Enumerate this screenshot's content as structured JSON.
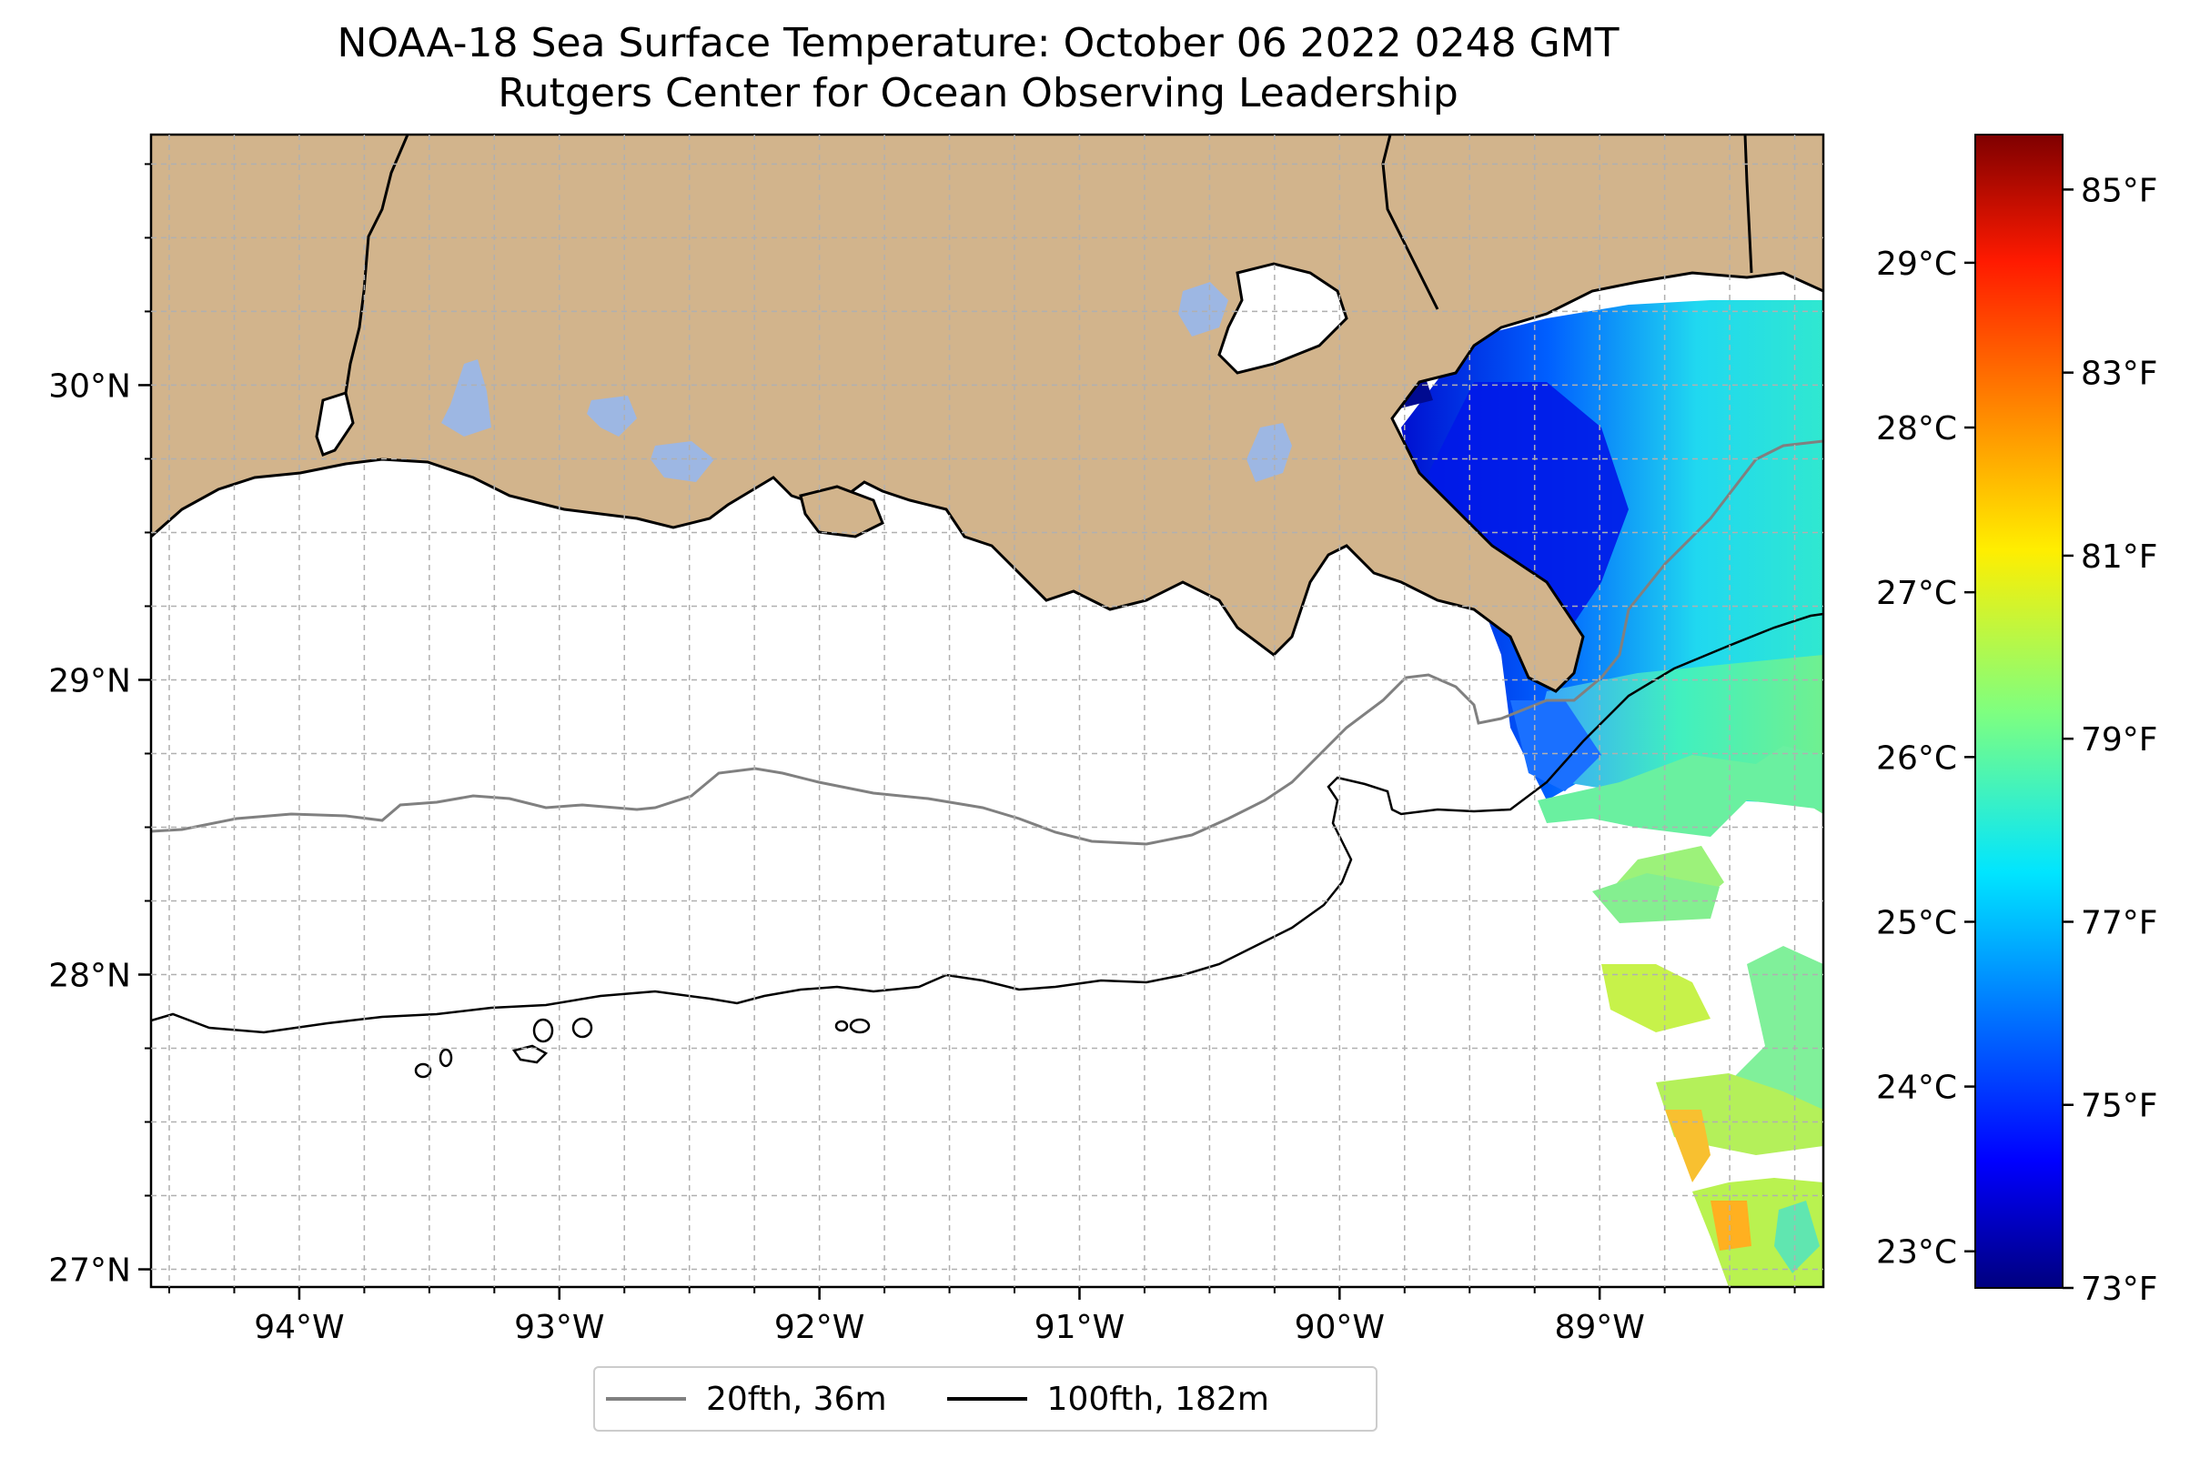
{
  "title": {
    "line1": "NOAA-18 Sea Surface Temperature: October 06 2022 0248 GMT",
    "line2": "Rutgers Center for Ocean Observing Leadership"
  },
  "map": {
    "lon_ticks": [
      "94°W",
      "93°W",
      "92°W",
      "91°W",
      "90°W",
      "89°W"
    ],
    "lat_ticks": [
      "30°N",
      "29°N",
      "28°N",
      "27°N"
    ],
    "lon_range": [
      -94.57,
      -88.14
    ],
    "lat_range": [
      26.94,
      30.85
    ],
    "grid": true
  },
  "colorbar": {
    "celsius_ticks": [
      "29°C",
      "28°C",
      "27°C",
      "26°C",
      "25°C",
      "24°C",
      "23°C"
    ],
    "fahrenheit_ticks": [
      "85°F",
      "83°F",
      "81°F",
      "79°F",
      "77°F",
      "75°F",
      "73°F"
    ],
    "colormap": "jet",
    "range_f": [
      73,
      85.6
    ]
  },
  "legend": {
    "items": [
      {
        "label": "20fth, 36m",
        "color": "#808080"
      },
      {
        "label": "100fth, 182m",
        "color": "#000000"
      }
    ]
  },
  "colors": {
    "land": "#d2b48c",
    "lakes": "#9db7e3",
    "ocean": "#ffffff"
  }
}
